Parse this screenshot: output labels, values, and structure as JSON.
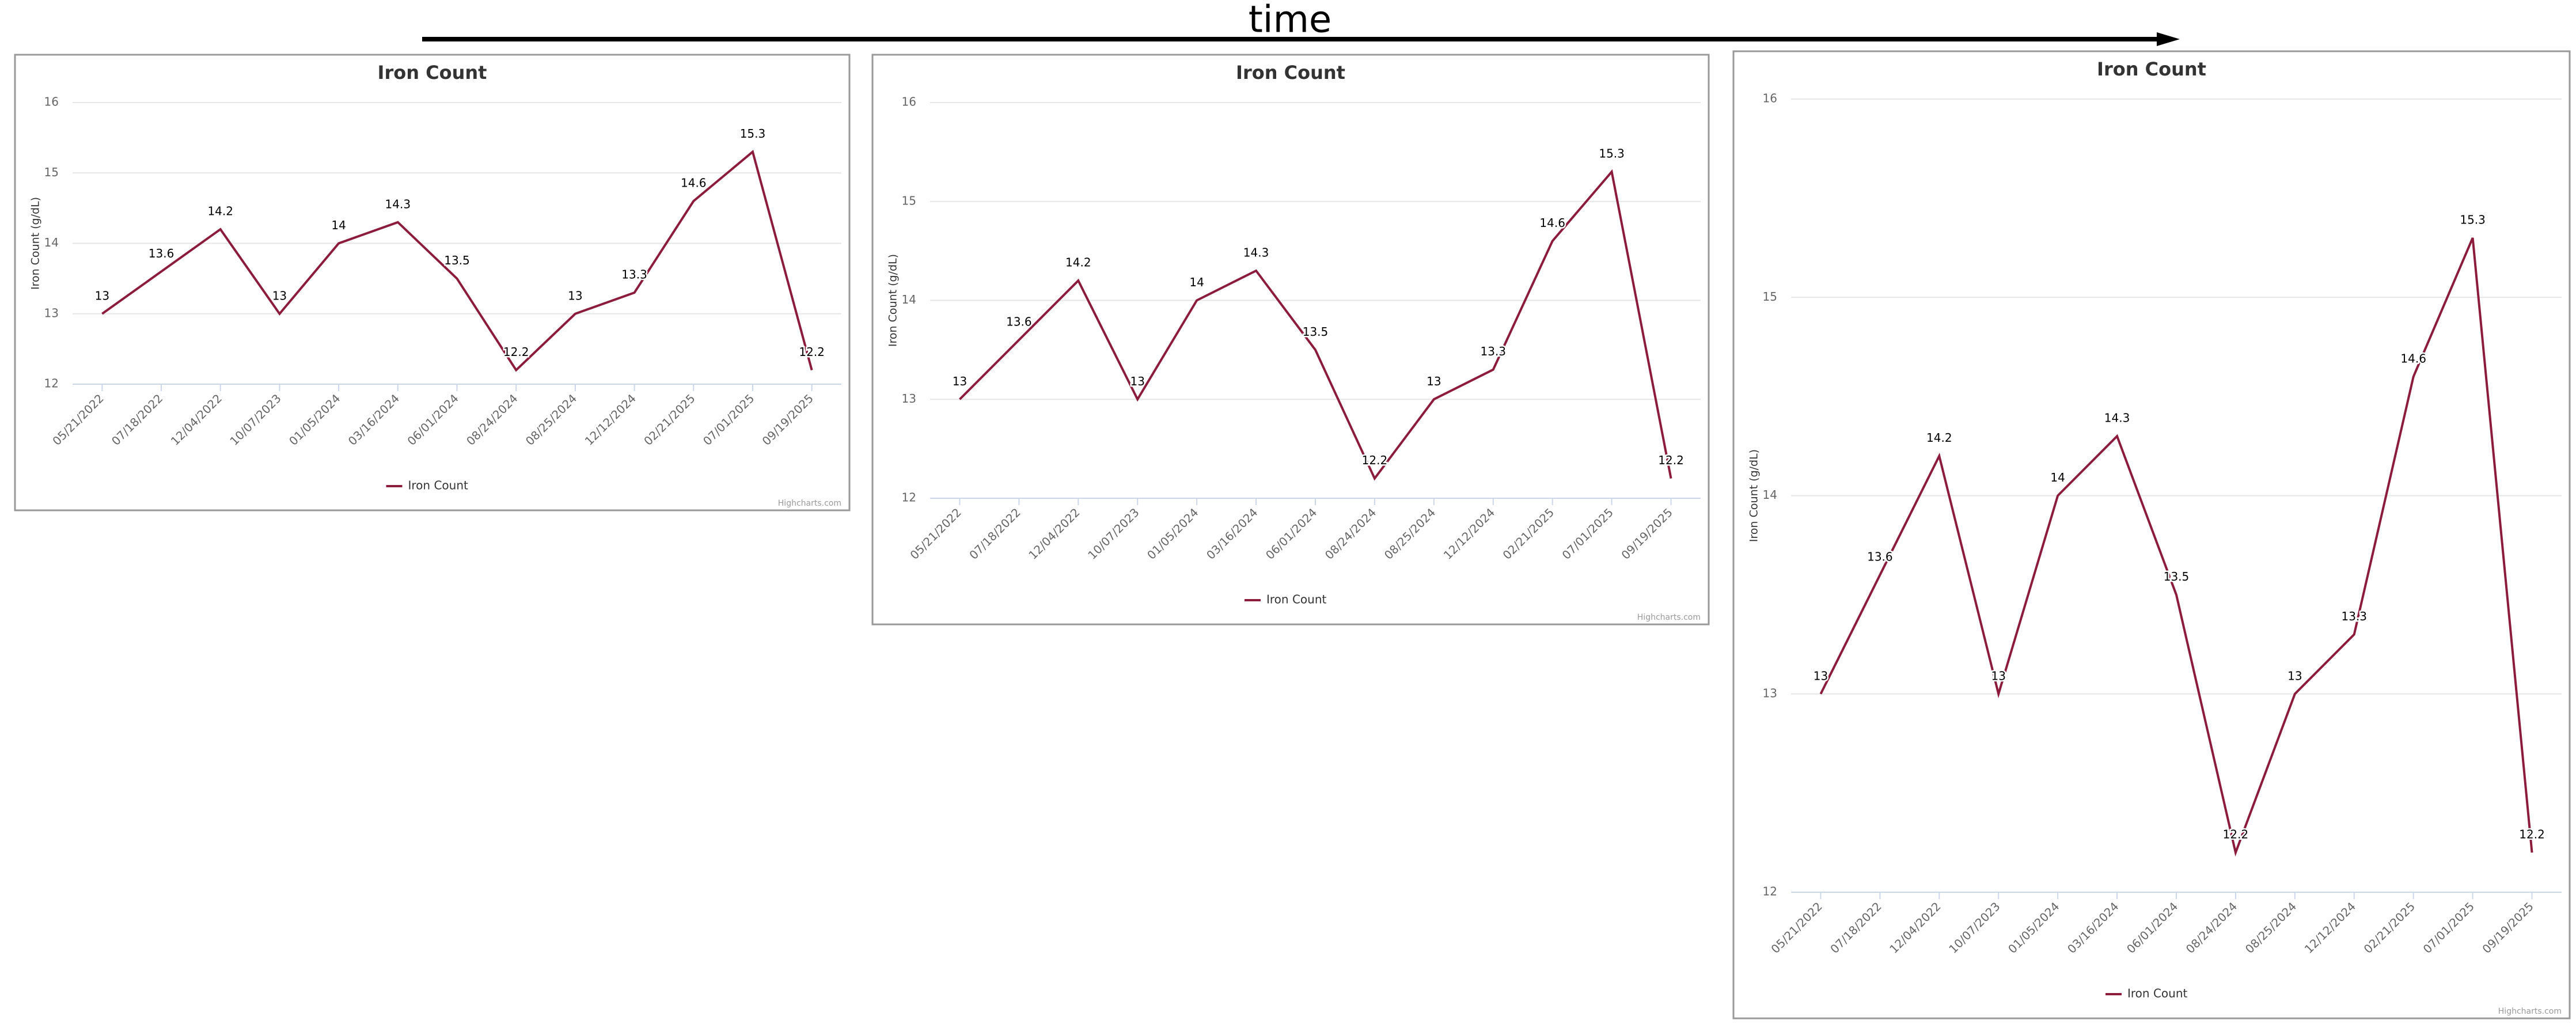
{
  "arrow_label": "time",
  "chart_data": [
    {
      "type": "line",
      "title": "Iron Count",
      "y_axis_label": "Iron Count (g/dL)",
      "categories": [
        "05/21/2022",
        "07/18/2022",
        "12/04/2022",
        "10/07/2023",
        "01/05/2024",
        "03/16/2024",
        "06/01/2024",
        "08/24/2024",
        "08/25/2024",
        "12/12/2024",
        "02/21/2025",
        "07/01/2025",
        "09/19/2025"
      ],
      "series": [
        {
          "name": "Iron Count",
          "color": "#8c1c3c",
          "values": [
            13,
            13.6,
            14.2,
            13,
            14,
            14.3,
            13.5,
            12.2,
            13,
            13.3,
            14.6,
            15.3,
            12.2
          ]
        }
      ],
      "ylim": [
        12,
        16
      ],
      "yticks": [
        12,
        13,
        14,
        15,
        16
      ],
      "grid": true,
      "legend": "bottom",
      "credits": "Highcharts.com"
    },
    {
      "type": "line",
      "title": "Iron Count",
      "y_axis_label": "Iron Count (g/dL)",
      "categories": [
        "05/21/2022",
        "07/18/2022",
        "12/04/2022",
        "10/07/2023",
        "01/05/2024",
        "03/16/2024",
        "06/01/2024",
        "08/24/2024",
        "08/25/2024",
        "12/12/2024",
        "02/21/2025",
        "07/01/2025",
        "09/19/2025"
      ],
      "series": [
        {
          "name": "Iron Count",
          "color": "#8c1c3c",
          "values": [
            13,
            13.6,
            14.2,
            13,
            14,
            14.3,
            13.5,
            12.2,
            13,
            13.3,
            14.6,
            15.3,
            12.2
          ]
        }
      ],
      "ylim": [
        12,
        16
      ],
      "yticks": [
        12,
        13,
        14,
        15,
        16
      ],
      "grid": true,
      "legend": "bottom",
      "credits": "Highcharts.com"
    },
    {
      "type": "line",
      "title": "Iron Count",
      "y_axis_label": "Iron Count (g/dL)",
      "categories": [
        "05/21/2022",
        "07/18/2022",
        "12/04/2022",
        "10/07/2023",
        "01/05/2024",
        "03/16/2024",
        "06/01/2024",
        "08/24/2024",
        "08/25/2024",
        "12/12/2024",
        "02/21/2025",
        "07/01/2025",
        "09/19/2025"
      ],
      "series": [
        {
          "name": "Iron Count",
          "color": "#8c1c3c",
          "values": [
            13,
            13.6,
            14.2,
            13,
            14,
            14.3,
            13.5,
            12.2,
            13,
            13.3,
            14.6,
            15.3,
            12.2
          ]
        }
      ],
      "ylim": [
        12,
        16
      ],
      "yticks": [
        12,
        13,
        14,
        15,
        16
      ],
      "grid": true,
      "legend": "bottom",
      "credits": "Highcharts.com"
    }
  ]
}
